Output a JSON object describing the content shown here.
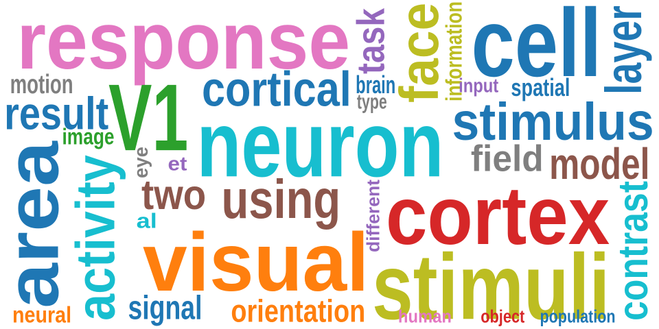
{
  "words": [
    {
      "id": "response",
      "text": "response",
      "color": "#e377c2",
      "rotated": false
    },
    {
      "id": "task",
      "text": "task",
      "color": "#9467bd",
      "rotated": true
    },
    {
      "id": "face",
      "text": "face",
      "color": "#bcbd22",
      "rotated": true
    },
    {
      "id": "information",
      "text": "information",
      "color": "#bcbd22",
      "rotated": true
    },
    {
      "id": "cell",
      "text": "cell",
      "color": "#1f77b4",
      "rotated": false
    },
    {
      "id": "layer",
      "text": "layer",
      "color": "#1f77b4",
      "rotated": true
    },
    {
      "id": "motion",
      "text": "motion",
      "color": "#7f7f7f",
      "rotated": false
    },
    {
      "id": "v1",
      "text": "V1",
      "color": "#2ca02c",
      "rotated": false
    },
    {
      "id": "cortical",
      "text": "cortical",
      "color": "#1f77b4",
      "rotated": false
    },
    {
      "id": "brain",
      "text": "brain",
      "color": "#1f77b4",
      "rotated": false
    },
    {
      "id": "type",
      "text": "type",
      "color": "#7f7f7f",
      "rotated": false
    },
    {
      "id": "input",
      "text": "input",
      "color": "#9467bd",
      "rotated": false
    },
    {
      "id": "spatial",
      "text": "spatial",
      "color": "#1f77b4",
      "rotated": false
    },
    {
      "id": "result",
      "text": "result",
      "color": "#1f77b4",
      "rotated": false
    },
    {
      "id": "stimulus",
      "text": "stimulus",
      "color": "#1f77b4",
      "rotated": false
    },
    {
      "id": "image",
      "text": "image",
      "color": "#2ca02c",
      "rotated": false
    },
    {
      "id": "neuron",
      "text": "neuron",
      "color": "#17becf",
      "rotated": false
    },
    {
      "id": "area",
      "text": "area",
      "color": "#1f77b4",
      "rotated": true
    },
    {
      "id": "eye",
      "text": "eye",
      "color": "#7f7f7f",
      "rotated": true
    },
    {
      "id": "et",
      "text": "et",
      "color": "#9467bd",
      "rotated": false
    },
    {
      "id": "field",
      "text": "field",
      "color": "#7f7f7f",
      "rotated": false
    },
    {
      "id": "model",
      "text": "model",
      "color": "#8c564b",
      "rotated": false
    },
    {
      "id": "activity",
      "text": "activity",
      "color": "#17becf",
      "rotated": true
    },
    {
      "id": "two",
      "text": "two",
      "color": "#8c564b",
      "rotated": false
    },
    {
      "id": "using",
      "text": "using",
      "color": "#8c564b",
      "rotated": false
    },
    {
      "id": "different",
      "text": "different",
      "color": "#9467bd",
      "rotated": true
    },
    {
      "id": "cortex",
      "text": "cortex",
      "color": "#d62728",
      "rotated": false
    },
    {
      "id": "al",
      "text": "al",
      "color": "#17becf",
      "rotated": false
    },
    {
      "id": "contrast",
      "text": "contrast",
      "color": "#17becf",
      "rotated": true
    },
    {
      "id": "visual",
      "text": "visual",
      "color": "#ff7f0e",
      "rotated": false
    },
    {
      "id": "stimuli",
      "text": "stimuli",
      "color": "#bcbd22",
      "rotated": false
    },
    {
      "id": "signal",
      "text": "signal",
      "color": "#1f77b4",
      "rotated": false
    },
    {
      "id": "neural",
      "text": "neural",
      "color": "#ff7f0e",
      "rotated": false
    },
    {
      "id": "orientation",
      "text": "orientation",
      "color": "#ff7f0e",
      "rotated": false
    },
    {
      "id": "human",
      "text": "human",
      "color": "#e377c2",
      "rotated": false
    },
    {
      "id": "object",
      "text": "object",
      "color": "#d62728",
      "rotated": false
    },
    {
      "id": "population",
      "text": "population",
      "color": "#1f77b4",
      "rotated": false
    }
  ]
}
